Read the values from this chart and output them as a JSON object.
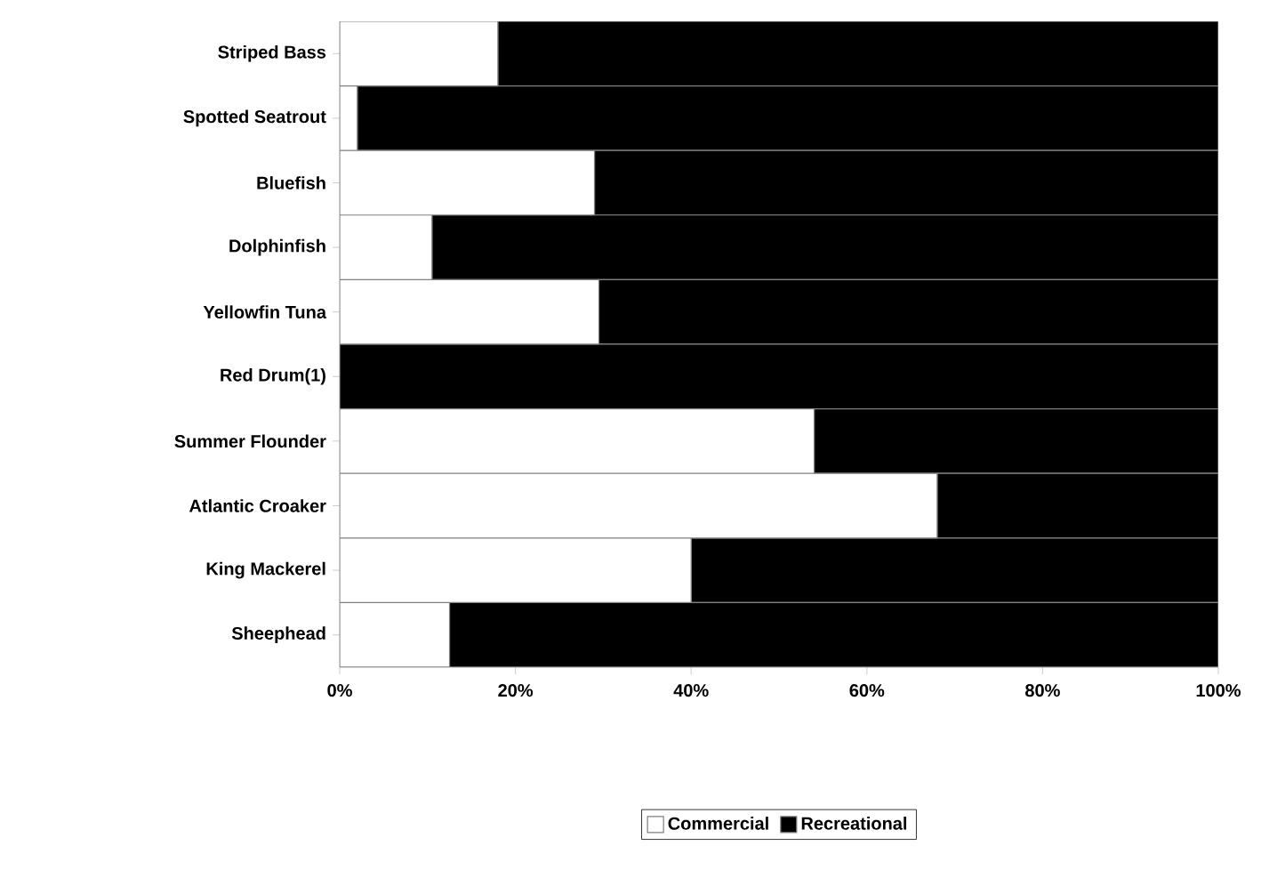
{
  "chart_data": {
    "type": "bar",
    "orientation": "horizontal",
    "stacked": true,
    "categories": [
      "Striped Bass",
      "Spotted Seatrout",
      "Bluefish",
      "Dolphinfish",
      "Yellowfin Tuna",
      "Red Drum(1)",
      "Summer Flounder",
      "Atlantic Croaker",
      "King Mackerel",
      "Sheephead"
    ],
    "series": [
      {
        "name": "Commercial",
        "color": "#ffffff",
        "values": [
          18,
          2,
          29,
          10.5,
          29.5,
          0,
          54,
          68,
          40,
          12.5
        ]
      },
      {
        "name": "Recreational",
        "color": "#000000",
        "values": [
          82,
          98,
          71,
          89.5,
          70.5,
          100,
          46,
          32,
          60,
          87.5
        ]
      }
    ],
    "xlim": [
      0,
      100
    ],
    "xticks": [
      {
        "value": 0,
        "label": "0%"
      },
      {
        "value": 20,
        "label": "20%"
      },
      {
        "value": 40,
        "label": "40%"
      },
      {
        "value": 60,
        "label": "60%"
      },
      {
        "value": 80,
        "label": "80%"
      },
      {
        "value": 100,
        "label": "100%"
      }
    ],
    "legend": "bottom"
  }
}
